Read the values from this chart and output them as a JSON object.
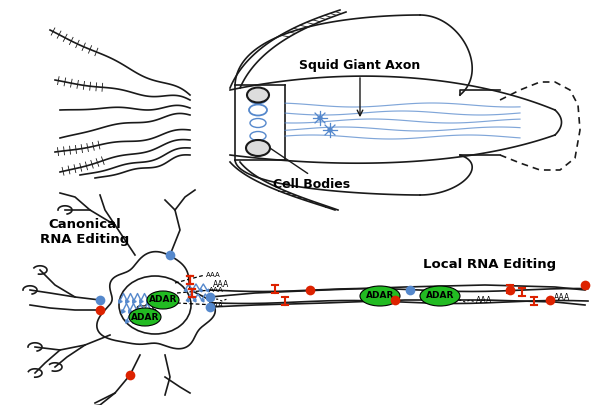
{
  "bg": "#ffffff",
  "lc": "#1a1a1a",
  "blue": "#5588cc",
  "red": "#dd2200",
  "green": "#22bb22",
  "lw": 1.2,
  "squid_label": "Squid Giant Axon",
  "cell_label": "Cell Bodies",
  "canon_label": "Canonical\nRNA Editing",
  "local_label": "Local RNA Editing",
  "adar": "ADAR",
  "aaa": "AAA"
}
